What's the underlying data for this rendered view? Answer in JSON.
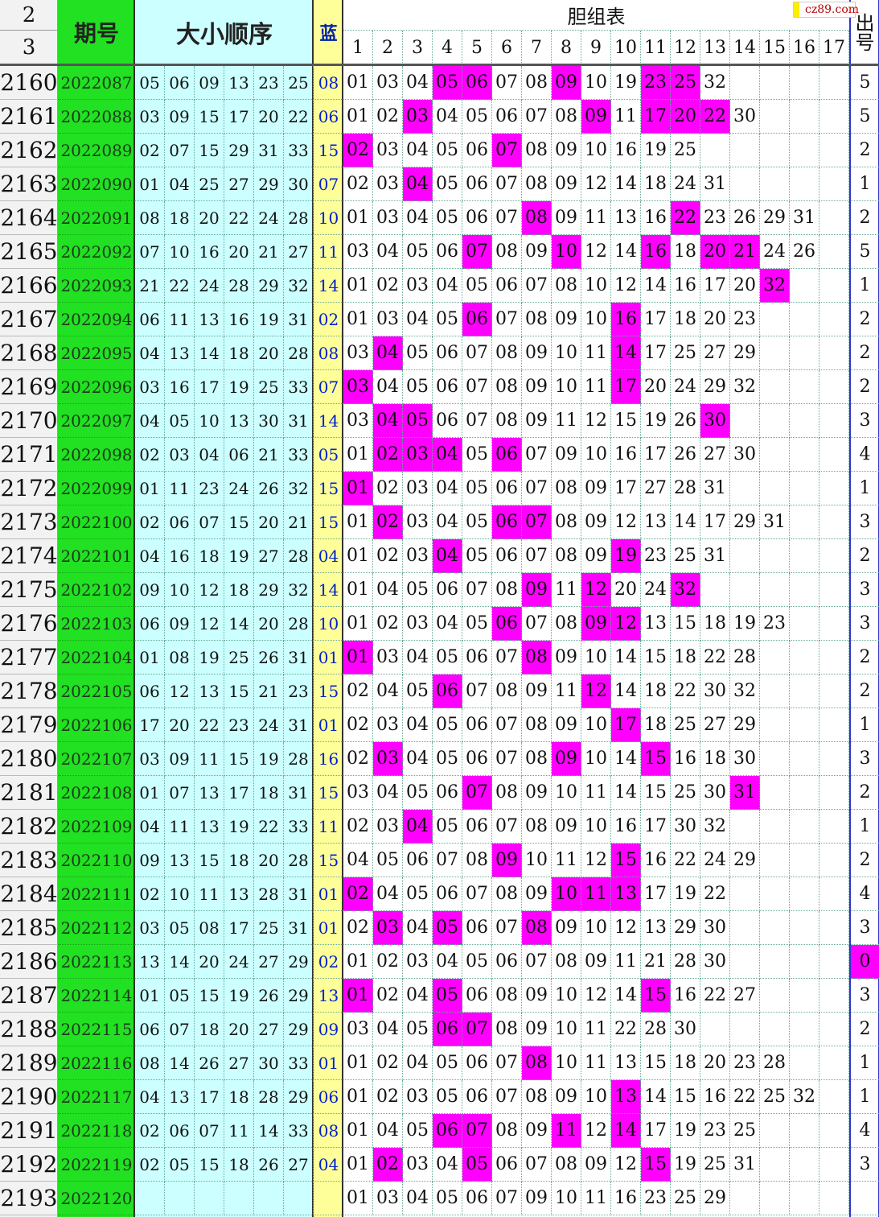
{
  "header": {
    "corner": [
      "2",
      "3"
    ],
    "period": "期号",
    "order": "大小顺序",
    "blue": "蓝",
    "group": "胆组表",
    "cols": [
      "1",
      "2",
      "3",
      "4",
      "5",
      "6",
      "7",
      "8",
      "9",
      "10",
      "11",
      "12",
      "13",
      "14",
      "15",
      "16",
      "17"
    ],
    "hits": "出号",
    "watermark": "cz89.com"
  },
  "rows": [
    {
      "n": "2160",
      "period": "2022087",
      "reds": [
        "05",
        "06",
        "09",
        "13",
        "23",
        "25"
      ],
      "blue": "08",
      "group": [
        "01",
        "03",
        "04",
        "05",
        "06",
        "07",
        "08",
        "09",
        "10",
        "19",
        "23",
        "25",
        "32"
      ],
      "hits": "5"
    },
    {
      "n": "2161",
      "period": "2022088",
      "reds": [
        "03",
        "09",
        "15",
        "17",
        "20",
        "22"
      ],
      "blue": "06",
      "group": [
        "01",
        "02",
        "03",
        "04",
        "05",
        "06",
        "07",
        "08",
        "09",
        "11",
        "17",
        "20",
        "22",
        "30"
      ],
      "hits": "5"
    },
    {
      "n": "2162",
      "period": "2022089",
      "reds": [
        "02",
        "07",
        "15",
        "29",
        "31",
        "33"
      ],
      "blue": "15",
      "group": [
        "02",
        "03",
        "04",
        "05",
        "06",
        "07",
        "08",
        "09",
        "10",
        "16",
        "19",
        "25"
      ],
      "hits": "2"
    },
    {
      "n": "2163",
      "period": "2022090",
      "reds": [
        "01",
        "04",
        "25",
        "27",
        "29",
        "30"
      ],
      "blue": "07",
      "group": [
        "02",
        "03",
        "04",
        "05",
        "06",
        "07",
        "08",
        "09",
        "12",
        "14",
        "18",
        "24",
        "31"
      ],
      "hits": "1"
    },
    {
      "n": "2164",
      "period": "2022091",
      "reds": [
        "08",
        "18",
        "20",
        "22",
        "24",
        "28"
      ],
      "blue": "10",
      "group": [
        "01",
        "03",
        "04",
        "05",
        "06",
        "07",
        "08",
        "09",
        "11",
        "13",
        "16",
        "22",
        "23",
        "26",
        "29",
        "31"
      ],
      "hits": "2"
    },
    {
      "n": "2165",
      "period": "2022092",
      "reds": [
        "07",
        "10",
        "16",
        "20",
        "21",
        "27"
      ],
      "blue": "11",
      "group": [
        "03",
        "04",
        "05",
        "06",
        "07",
        "08",
        "09",
        "10",
        "12",
        "14",
        "16",
        "18",
        "20",
        "21",
        "24",
        "26"
      ],
      "hits": "5"
    },
    {
      "n": "2166",
      "period": "2022093",
      "reds": [
        "21",
        "22",
        "24",
        "28",
        "29",
        "32"
      ],
      "blue": "14",
      "group": [
        "01",
        "02",
        "03",
        "04",
        "05",
        "06",
        "07",
        "08",
        "10",
        "12",
        "14",
        "16",
        "17",
        "20",
        "32"
      ],
      "hits": "1"
    },
    {
      "n": "2167",
      "period": "2022094",
      "reds": [
        "06",
        "11",
        "13",
        "16",
        "19",
        "31"
      ],
      "blue": "02",
      "group": [
        "01",
        "03",
        "04",
        "05",
        "06",
        "07",
        "08",
        "09",
        "10",
        "16",
        "17",
        "18",
        "20",
        "23"
      ],
      "hits": "2"
    },
    {
      "n": "2168",
      "period": "2022095",
      "reds": [
        "04",
        "13",
        "14",
        "18",
        "20",
        "28"
      ],
      "blue": "08",
      "group": [
        "03",
        "04",
        "05",
        "06",
        "07",
        "08",
        "09",
        "10",
        "11",
        "14",
        "17",
        "25",
        "27",
        "29"
      ],
      "hits": "2"
    },
    {
      "n": "2169",
      "period": "2022096",
      "reds": [
        "03",
        "16",
        "17",
        "19",
        "25",
        "33"
      ],
      "blue": "07",
      "group": [
        "03",
        "04",
        "05",
        "06",
        "07",
        "08",
        "09",
        "10",
        "11",
        "17",
        "20",
        "24",
        "29",
        "32"
      ],
      "hits": "2"
    },
    {
      "n": "2170",
      "period": "2022097",
      "reds": [
        "04",
        "05",
        "10",
        "13",
        "30",
        "31"
      ],
      "blue": "14",
      "group": [
        "03",
        "04",
        "05",
        "06",
        "07",
        "08",
        "09",
        "11",
        "12",
        "15",
        "19",
        "26",
        "30"
      ],
      "hits": "3"
    },
    {
      "n": "2171",
      "period": "2022098",
      "reds": [
        "02",
        "03",
        "04",
        "06",
        "21",
        "33"
      ],
      "blue": "05",
      "group": [
        "01",
        "02",
        "03",
        "04",
        "05",
        "06",
        "07",
        "09",
        "10",
        "16",
        "17",
        "26",
        "27",
        "30"
      ],
      "hits": "4"
    },
    {
      "n": "2172",
      "period": "2022099",
      "reds": [
        "01",
        "11",
        "23",
        "24",
        "26",
        "32"
      ],
      "blue": "15",
      "group": [
        "01",
        "02",
        "03",
        "04",
        "05",
        "06",
        "07",
        "08",
        "09",
        "17",
        "27",
        "28",
        "31"
      ],
      "hits": "1"
    },
    {
      "n": "2173",
      "period": "2022100",
      "reds": [
        "02",
        "06",
        "07",
        "15",
        "20",
        "21"
      ],
      "blue": "15",
      "group": [
        "01",
        "02",
        "03",
        "04",
        "05",
        "06",
        "07",
        "08",
        "09",
        "12",
        "13",
        "14",
        "17",
        "29",
        "31"
      ],
      "hits": "3"
    },
    {
      "n": "2174",
      "period": "2022101",
      "reds": [
        "04",
        "16",
        "18",
        "19",
        "27",
        "28"
      ],
      "blue": "04",
      "group": [
        "01",
        "02",
        "03",
        "04",
        "05",
        "06",
        "07",
        "08",
        "09",
        "19",
        "23",
        "25",
        "31"
      ],
      "hits": "2"
    },
    {
      "n": "2175",
      "period": "2022102",
      "reds": [
        "09",
        "10",
        "12",
        "18",
        "29",
        "32"
      ],
      "blue": "14",
      "group": [
        "01",
        "04",
        "05",
        "06",
        "07",
        "08",
        "09",
        "11",
        "12",
        "20",
        "24",
        "32"
      ],
      "hits": "3"
    },
    {
      "n": "2176",
      "period": "2022103",
      "reds": [
        "06",
        "09",
        "12",
        "14",
        "20",
        "28"
      ],
      "blue": "10",
      "group": [
        "01",
        "02",
        "03",
        "04",
        "05",
        "06",
        "07",
        "08",
        "09",
        "12",
        "13",
        "15",
        "18",
        "19",
        "23"
      ],
      "hits": "3"
    },
    {
      "n": "2177",
      "period": "2022104",
      "reds": [
        "01",
        "08",
        "19",
        "25",
        "26",
        "31"
      ],
      "blue": "01",
      "group": [
        "01",
        "03",
        "04",
        "05",
        "06",
        "07",
        "08",
        "09",
        "10",
        "14",
        "15",
        "18",
        "22",
        "28"
      ],
      "hits": "2"
    },
    {
      "n": "2178",
      "period": "2022105",
      "reds": [
        "06",
        "12",
        "13",
        "15",
        "21",
        "23"
      ],
      "blue": "15",
      "group": [
        "02",
        "04",
        "05",
        "06",
        "07",
        "08",
        "09",
        "11",
        "12",
        "14",
        "18",
        "22",
        "30",
        "32"
      ],
      "hits": "2"
    },
    {
      "n": "2179",
      "period": "2022106",
      "reds": [
        "17",
        "20",
        "22",
        "23",
        "24",
        "31"
      ],
      "blue": "01",
      "group": [
        "02",
        "03",
        "04",
        "05",
        "06",
        "07",
        "08",
        "09",
        "10",
        "17",
        "18",
        "25",
        "27",
        "29"
      ],
      "hits": "1"
    },
    {
      "n": "2180",
      "period": "2022107",
      "reds": [
        "03",
        "09",
        "11",
        "15",
        "19",
        "28"
      ],
      "blue": "16",
      "group": [
        "02",
        "03",
        "04",
        "05",
        "06",
        "07",
        "08",
        "09",
        "10",
        "14",
        "15",
        "16",
        "18",
        "30"
      ],
      "hits": "3"
    },
    {
      "n": "2181",
      "period": "2022108",
      "reds": [
        "01",
        "07",
        "13",
        "17",
        "18",
        "31"
      ],
      "blue": "15",
      "group": [
        "03",
        "04",
        "05",
        "06",
        "07",
        "08",
        "09",
        "10",
        "11",
        "14",
        "15",
        "25",
        "30",
        "31"
      ],
      "hits": "2"
    },
    {
      "n": "2182",
      "period": "2022109",
      "reds": [
        "04",
        "11",
        "13",
        "19",
        "22",
        "33"
      ],
      "blue": "11",
      "group": [
        "02",
        "03",
        "04",
        "05",
        "06",
        "07",
        "08",
        "09",
        "10",
        "16",
        "17",
        "30",
        "32"
      ],
      "hits": "1"
    },
    {
      "n": "2183",
      "period": "2022110",
      "reds": [
        "09",
        "13",
        "15",
        "18",
        "20",
        "28"
      ],
      "blue": "15",
      "group": [
        "04",
        "05",
        "06",
        "07",
        "08",
        "09",
        "10",
        "11",
        "12",
        "15",
        "16",
        "22",
        "24",
        "29"
      ],
      "hits": "2"
    },
    {
      "n": "2184",
      "period": "2022111",
      "reds": [
        "02",
        "10",
        "11",
        "13",
        "28",
        "31"
      ],
      "blue": "01",
      "group": [
        "02",
        "04",
        "05",
        "06",
        "07",
        "08",
        "09",
        "10",
        "11",
        "13",
        "17",
        "19",
        "22"
      ],
      "hits": "4"
    },
    {
      "n": "2185",
      "period": "2022112",
      "reds": [
        "03",
        "05",
        "08",
        "17",
        "25",
        "31"
      ],
      "blue": "01",
      "group": [
        "02",
        "03",
        "04",
        "05",
        "06",
        "07",
        "08",
        "09",
        "10",
        "12",
        "13",
        "29",
        "30"
      ],
      "hits": "3"
    },
    {
      "n": "2186",
      "period": "2022113",
      "reds": [
        "13",
        "14",
        "20",
        "24",
        "27",
        "29"
      ],
      "blue": "02",
      "group": [
        "01",
        "02",
        "03",
        "04",
        "05",
        "06",
        "07",
        "08",
        "09",
        "11",
        "21",
        "28",
        "30"
      ],
      "hits": "0"
    },
    {
      "n": "2187",
      "period": "2022114",
      "reds": [
        "01",
        "05",
        "15",
        "19",
        "26",
        "29"
      ],
      "blue": "13",
      "group": [
        "01",
        "02",
        "04",
        "05",
        "06",
        "08",
        "09",
        "10",
        "12",
        "14",
        "15",
        "16",
        "22",
        "27"
      ],
      "hits": "3"
    },
    {
      "n": "2188",
      "period": "2022115",
      "reds": [
        "06",
        "07",
        "18",
        "20",
        "27",
        "29"
      ],
      "blue": "09",
      "group": [
        "03",
        "04",
        "05",
        "06",
        "07",
        "08",
        "09",
        "10",
        "11",
        "22",
        "28",
        "30"
      ],
      "hits": "2"
    },
    {
      "n": "2189",
      "period": "2022116",
      "reds": [
        "08",
        "14",
        "26",
        "27",
        "30",
        "33"
      ],
      "blue": "01",
      "group": [
        "01",
        "02",
        "04",
        "05",
        "06",
        "07",
        "08",
        "10",
        "11",
        "13",
        "15",
        "18",
        "20",
        "23",
        "28"
      ],
      "hits": "1"
    },
    {
      "n": "2190",
      "period": "2022117",
      "reds": [
        "04",
        "13",
        "17",
        "18",
        "28",
        "29"
      ],
      "blue": "06",
      "group": [
        "01",
        "02",
        "03",
        "05",
        "06",
        "07",
        "08",
        "09",
        "10",
        "13",
        "14",
        "15",
        "16",
        "22",
        "25",
        "32"
      ],
      "hits": "1"
    },
    {
      "n": "2191",
      "period": "2022118",
      "reds": [
        "02",
        "06",
        "07",
        "11",
        "14",
        "33"
      ],
      "blue": "08",
      "group": [
        "01",
        "04",
        "05",
        "06",
        "07",
        "08",
        "09",
        "11",
        "12",
        "14",
        "17",
        "19",
        "23",
        "25"
      ],
      "hits": "4"
    },
    {
      "n": "2192",
      "period": "2022119",
      "reds": [
        "02",
        "05",
        "15",
        "18",
        "26",
        "27"
      ],
      "blue": "04",
      "group": [
        "01",
        "02",
        "03",
        "04",
        "05",
        "06",
        "07",
        "08",
        "09",
        "12",
        "15",
        "19",
        "25",
        "31"
      ],
      "hits": "3"
    },
    {
      "n": "2193",
      "period": "2022120",
      "reds": [],
      "group": [
        "01",
        "03",
        "04",
        "05",
        "06",
        "07",
        "09",
        "10",
        "11",
        "16",
        "23",
        "25",
        "29"
      ]
    }
  ]
}
